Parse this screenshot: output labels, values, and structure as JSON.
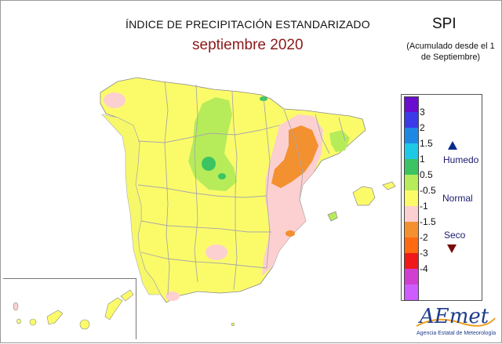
{
  "header": {
    "title": "ÍNDICE DE PRECIPITACIÓN ESTANDARIZADO",
    "subtitle": "septiembre 2020",
    "index_name": "SPI",
    "accumulation_note": "(Acumulado desde el 1 de Septiembre)"
  },
  "legend": {
    "classes": [
      {
        "color": "#6a0dce",
        "label": ""
      },
      {
        "color": "#3b3bea",
        "label": "3"
      },
      {
        "color": "#1e88e5",
        "label": "2"
      },
      {
        "color": "#1ec9e8",
        "label": "1.5"
      },
      {
        "color": "#3cc463",
        "label": "1"
      },
      {
        "color": "#b6ec5a",
        "label": "0.5"
      },
      {
        "color": "#fbfb6a",
        "label": "-0.5"
      },
      {
        "color": "#fcd0d0",
        "label": "-1"
      },
      {
        "color": "#f39030",
        "label": "-1.5"
      },
      {
        "color": "#ff6a10",
        "label": "-2"
      },
      {
        "color": "#f01818",
        "label": "-3"
      },
      {
        "color": "#d23ed2",
        "label": "-4"
      },
      {
        "color": "#cf5cff",
        "label": ""
      }
    ],
    "humid_label": "Humedo",
    "normal_label": "Normal",
    "dry_label": "Seco"
  },
  "logo": {
    "text": "AEmet",
    "subtitle": "Agencia Estatal de Meteorología"
  },
  "colors": {
    "normal": "#fbfb6a",
    "slightly_humid": "#b6ec5a",
    "humid": "#3cc463",
    "slightly_dry": "#fcd0d0",
    "dry": "#f39030",
    "border": "#a8a8a8"
  }
}
